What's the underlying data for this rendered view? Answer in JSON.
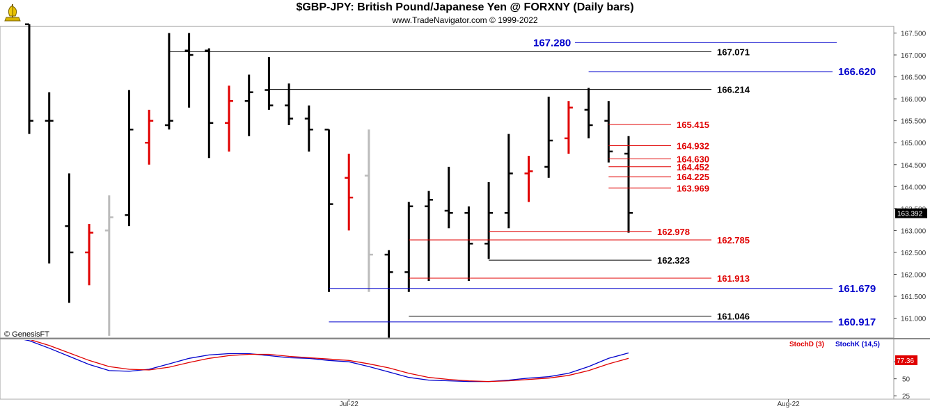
{
  "header": {
    "title": "$GBP-JPY:  British Pound/Japanese Yen @ FORXNY  (Daily bars)",
    "subtitle": "www.TradeNavigator.com © 1999-2022"
  },
  "watermark": "© GenesisFT",
  "colors": {
    "up": "#000000",
    "down": "#e00000",
    "gray": "#bbbbbb",
    "blue": "#0000cc",
    "red": "#e00000"
  },
  "chart_data": [
    {
      "type": "ohlc",
      "ylim": [
        160.55,
        167.65
      ],
      "y_ticks": [
        "167.500",
        "167.000",
        "166.500",
        "166.000",
        "165.500",
        "165.000",
        "164.500",
        "164.000",
        "163.500",
        "163.000",
        "162.500",
        "162.000",
        "161.500",
        "161.000"
      ],
      "last_price": "163.392",
      "x_labels": [
        {
          "label": "Jul-22",
          "bar": 16
        },
        {
          "label": "Aug-22",
          "bar": 38
        }
      ],
      "bars": [
        {
          "o": 167.7,
          "h": 167.7,
          "l": 165.2,
          "c": 165.5,
          "k": "b"
        },
        {
          "o": 165.5,
          "h": 166.15,
          "l": 162.25,
          "c": 165.5,
          "k": "b"
        },
        {
          "o": 163.1,
          "h": 164.3,
          "l": 161.35,
          "c": 162.5,
          "k": "b"
        },
        {
          "o": 162.5,
          "h": 163.15,
          "l": 161.75,
          "c": 162.95,
          "k": "r"
        },
        {
          "o": 163.0,
          "h": 163.8,
          "l": 160.6,
          "c": 163.3,
          "k": "g"
        },
        {
          "o": 163.35,
          "h": 166.2,
          "l": 163.1,
          "c": 165.3,
          "k": "b"
        },
        {
          "o": 165.0,
          "h": 165.75,
          "l": 164.5,
          "c": 165.5,
          "k": "r"
        },
        {
          "o": 165.4,
          "h": 167.5,
          "l": 165.3,
          "c": 165.5,
          "k": "b"
        },
        {
          "o": 167.1,
          "h": 167.5,
          "l": 165.8,
          "c": 167.0,
          "k": "b"
        },
        {
          "o": 167.1,
          "h": 167.15,
          "l": 164.65,
          "c": 165.45,
          "k": "b"
        },
        {
          "o": 165.45,
          "h": 166.3,
          "l": 164.8,
          "c": 165.95,
          "k": "r"
        },
        {
          "o": 165.95,
          "h": 166.55,
          "l": 165.15,
          "c": 166.15,
          "k": "b"
        },
        {
          "o": 166.2,
          "h": 166.95,
          "l": 165.75,
          "c": 165.85,
          "k": "b"
        },
        {
          "o": 165.85,
          "h": 166.35,
          "l": 165.4,
          "c": 165.55,
          "k": "b"
        },
        {
          "o": 165.55,
          "h": 165.85,
          "l": 164.8,
          "c": 165.3,
          "k": "b"
        },
        {
          "o": 165.3,
          "h": 165.3,
          "l": 161.6,
          "c": 163.6,
          "k": "b"
        },
        {
          "o": 164.2,
          "h": 164.75,
          "l": 163.0,
          "c": 163.75,
          "k": "r"
        },
        {
          "o": 164.25,
          "h": 165.3,
          "l": 161.6,
          "c": 162.45,
          "k": "g"
        },
        {
          "o": 162.45,
          "h": 162.55,
          "l": 160.55,
          "c": 162.05,
          "k": "b"
        },
        {
          "o": 162.05,
          "h": 163.65,
          "l": 161.6,
          "c": 163.55,
          "k": "b"
        },
        {
          "o": 163.55,
          "h": 163.9,
          "l": 161.85,
          "c": 163.7,
          "k": "b"
        },
        {
          "o": 163.45,
          "h": 164.45,
          "l": 163.05,
          "c": 163.4,
          "k": "b"
        },
        {
          "o": 163.4,
          "h": 163.55,
          "l": 161.85,
          "c": 162.7,
          "k": "b"
        },
        {
          "o": 162.7,
          "h": 164.1,
          "l": 162.35,
          "c": 163.4,
          "k": "b"
        },
        {
          "o": 163.4,
          "h": 165.2,
          "l": 163.05,
          "c": 164.3,
          "k": "b"
        },
        {
          "o": 164.3,
          "h": 164.7,
          "l": 163.65,
          "c": 164.35,
          "k": "r"
        },
        {
          "o": 164.45,
          "h": 166.05,
          "l": 164.2,
          "c": 165.05,
          "k": "b"
        },
        {
          "o": 165.1,
          "h": 165.95,
          "l": 164.75,
          "c": 165.8,
          "k": "r"
        },
        {
          "o": 165.75,
          "h": 166.25,
          "l": 165.1,
          "c": 165.4,
          "k": "b"
        },
        {
          "o": 165.5,
          "h": 165.95,
          "l": 164.55,
          "c": 164.8,
          "k": "b"
        },
        {
          "o": 164.75,
          "h": 165.15,
          "l": 162.95,
          "c": 163.4,
          "k": "b"
        }
      ],
      "levels": [
        {
          "label": "167.280",
          "value": 167.28,
          "color": "blue",
          "size": "big",
          "x0": "b28"
        },
        {
          "label": "167.071",
          "value": 167.071,
          "color": "black",
          "size": "normal",
          "x0": "b7"
        },
        {
          "label": "166.620",
          "value": 166.62,
          "color": "blue",
          "size": "big",
          "x0": "b28"
        },
        {
          "label": "166.214",
          "value": 166.214,
          "color": "black",
          "size": "normal",
          "x0": "b12"
        },
        {
          "label": "165.415",
          "value": 165.415,
          "color": "red",
          "size": "normal",
          "x0": "b29"
        },
        {
          "label": "164.932",
          "value": 164.932,
          "color": "red",
          "size": "normal",
          "x0": "b29"
        },
        {
          "label": "164.630",
          "value": 164.63,
          "color": "red",
          "size": "normal",
          "x0": "b29"
        },
        {
          "label": "164.452",
          "value": 164.452,
          "color": "red",
          "size": "normal",
          "x0": "b29"
        },
        {
          "label": "164.225",
          "value": 164.225,
          "color": "red",
          "size": "normal",
          "x0": "b29"
        },
        {
          "label": "163.969",
          "value": 163.969,
          "color": "red",
          "size": "normal",
          "x0": "b29"
        },
        {
          "label": "162.978",
          "value": 162.978,
          "color": "red",
          "size": "normal",
          "x0": "b23"
        },
        {
          "label": "162.785",
          "value": 162.785,
          "color": "red",
          "size": "normal",
          "x0": "b19"
        },
        {
          "label": "162.323",
          "value": 162.323,
          "color": "black",
          "size": "normal",
          "x0": "b23"
        },
        {
          "label": "161.913",
          "value": 161.913,
          "color": "red",
          "size": "normal",
          "x0": "b19"
        },
        {
          "label": "161.679",
          "value": 161.679,
          "color": "blue",
          "size": "big",
          "x0": "b15"
        },
        {
          "label": "161.046",
          "value": 161.046,
          "color": "black",
          "size": "normal",
          "x0": "b19"
        },
        {
          "label": "160.917",
          "value": 160.917,
          "color": "blue",
          "size": "big",
          "x0": "b15"
        }
      ]
    },
    {
      "type": "line",
      "indicator": "stochastic",
      "ylim": [
        20,
        110
      ],
      "y_ticks": [
        "75",
        "50",
        "25"
      ],
      "last_value": "77.36",
      "legend": [
        {
          "name": "StochD (3)",
          "color": "#e00000"
        },
        {
          "name": "StochK (14,5)",
          "color": "#0000cc"
        }
      ],
      "x": [
        -1,
        0,
        1,
        2,
        3,
        4,
        5,
        6,
        7,
        8,
        9,
        10,
        11,
        12,
        13,
        14,
        15,
        16,
        17,
        18,
        19,
        20,
        21,
        22,
        23,
        24,
        25,
        26,
        27,
        28,
        29,
        30
      ],
      "series": [
        {
          "name": "StochK (14,5)",
          "color": "#0000cc",
          "values": [
            112,
            106,
            95,
            83,
            71,
            62,
            61,
            64,
            72,
            80,
            85,
            87,
            87,
            84,
            81,
            80,
            77,
            75,
            68,
            60,
            52,
            48,
            47,
            46,
            46,
            48,
            51,
            53,
            58,
            68,
            80,
            88
          ]
        },
        {
          "name": "StochD (3)",
          "color": "#e00000",
          "values": [
            110,
            108,
            99,
            88,
            77,
            68,
            64,
            63,
            67,
            74,
            80,
            84,
            86,
            86,
            83,
            81,
            79,
            77,
            72,
            66,
            58,
            52,
            49,
            47,
            46,
            47,
            49,
            51,
            55,
            62,
            72,
            80
          ]
        }
      ]
    }
  ]
}
